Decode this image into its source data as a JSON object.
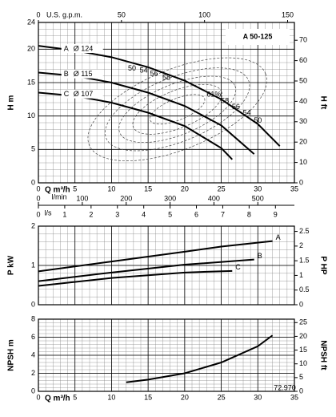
{
  "chart_data": [
    {
      "type": "line",
      "title": "A 50-125",
      "ylabel": "H m",
      "y2label": "H ft",
      "xlabel": "Q m³/h",
      "top_axis_label": "U.S. g.p.m.",
      "xlim": [
        0,
        35
      ],
      "xticks": [
        0,
        5,
        10,
        15,
        20,
        25,
        30,
        35
      ],
      "ylim": [
        0,
        24
      ],
      "yticks": [
        0,
        5,
        10,
        15,
        20,
        24
      ],
      "y2lim": [
        0,
        78.74
      ],
      "y2ticks": [
        0,
        10,
        20,
        30,
        40,
        50,
        60,
        70
      ],
      "top_xlim": [
        0,
        154.1
      ],
      "top_xticks": [
        0,
        50,
        100,
        150
      ],
      "extra_axes": [
        {
          "label": "l/min",
          "xlim": [
            0,
            583.3
          ],
          "xticks": [
            0,
            100,
            200,
            300,
            400,
            500
          ]
        },
        {
          "label": "l/s",
          "xlim": [
            0,
            9.72
          ],
          "xticks": [
            0,
            1,
            2,
            3,
            4,
            5,
            6,
            7,
            8,
            9
          ]
        }
      ],
      "grid": true,
      "series_label": "start",
      "series": [
        {
          "name": "A",
          "diameter_label": "Ø 124",
          "color": "#000000",
          "x": [
            0,
            5,
            10,
            15,
            20,
            25,
            30,
            33
          ],
          "values": [
            20.5,
            19.8,
            18.8,
            17.3,
            15.3,
            12.5,
            8.8,
            5.5
          ]
        },
        {
          "name": "B",
          "diameter_label": "Ø 115",
          "color": "#000000",
          "x": [
            0,
            5,
            10,
            15,
            20,
            25,
            29.5
          ],
          "values": [
            16.5,
            16,
            15,
            13.5,
            11.5,
            8.6,
            4.3
          ]
        },
        {
          "name": "C",
          "diameter_label": "Ø 107",
          "color": "#000000",
          "x": [
            0,
            5,
            10,
            15,
            20,
            25,
            26.5
          ],
          "values": [
            13.5,
            13,
            12,
            10.5,
            8.5,
            5.2,
            3.5
          ]
        }
      ],
      "efficiency_labels": [
        "50",
        "54",
        "56",
        "58",
        "61%",
        "58",
        "56",
        "54",
        "50"
      ]
    },
    {
      "type": "line",
      "ylabel": "P kW",
      "y2label": "P HP",
      "xlim": [
        0,
        35
      ],
      "xticks": [
        0,
        5,
        10,
        15,
        20,
        25,
        30,
        35
      ],
      "show_xtick_labels": false,
      "ylim": [
        0,
        2
      ],
      "yticks": [
        0,
        1,
        2
      ],
      "y2lim": [
        0,
        2.68
      ],
      "y2ticks": [
        0,
        0.5,
        1,
        1.5,
        2,
        2.5
      ],
      "grid": true,
      "series_label": "end",
      "series": [
        {
          "name": "A",
          "color": "#000000",
          "x": [
            0,
            10,
            20,
            25,
            32
          ],
          "values": [
            0.85,
            1.1,
            1.35,
            1.48,
            1.62
          ]
        },
        {
          "name": "B",
          "color": "#000000",
          "x": [
            0,
            10,
            20,
            29.5
          ],
          "values": [
            0.6,
            0.82,
            1.02,
            1.15
          ]
        },
        {
          "name": "C",
          "color": "#000000",
          "x": [
            0,
            10,
            20,
            26.5
          ],
          "values": [
            0.48,
            0.68,
            0.82,
            0.86
          ]
        }
      ]
    },
    {
      "type": "line",
      "ylabel": "NPSH m",
      "y2label": "NPSH ft",
      "xlabel": "Q m³/h",
      "note": "72.970",
      "xlim": [
        0,
        35
      ],
      "xticks": [
        0,
        5,
        10,
        15,
        20,
        25,
        30,
        35
      ],
      "ylim": [
        0,
        8
      ],
      "yticks": [
        0,
        2,
        4,
        6,
        8
      ],
      "y2lim": [
        0,
        26.25
      ],
      "y2ticks": [
        0,
        5,
        10,
        15,
        20,
        25
      ],
      "grid": true,
      "series": [
        {
          "name": "NPSH",
          "color": "#000000",
          "x": [
            12,
            15,
            20,
            25,
            30,
            32
          ],
          "values": [
            1,
            1.3,
            2,
            3.2,
            5,
            6.2
          ]
        }
      ]
    }
  ]
}
